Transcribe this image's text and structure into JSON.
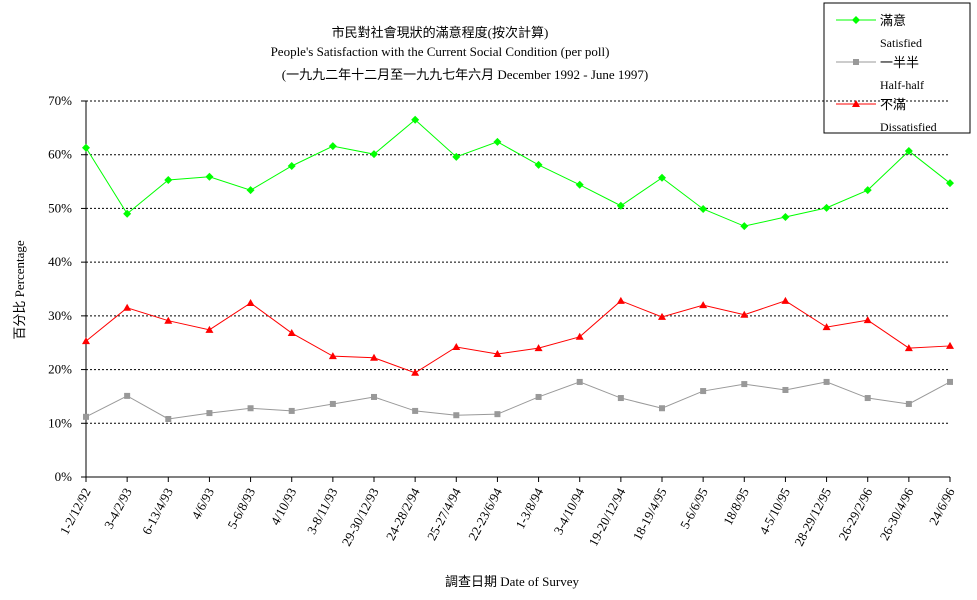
{
  "chart_data": {
    "type": "line",
    "title": "市民對社會現狀的滿意程度(按次計算)",
    "subtitle": "People's Satisfaction with the Current Social Condition (per poll)",
    "subtitle2": "(一九九二年十二月至一九九七年六月 December 1992 -  June 1997)",
    "y_label": "百分比 Percentage",
    "x_label": "調查日期 Date of Survey",
    "categories": [
      "1-2/12/92",
      "3-4/2/93",
      "6-13/4/93",
      "4/6/93",
      "5-6/8/93",
      "4/10/93",
      "3-8/11/93",
      "29-30/12/93",
      "24-28/2/94",
      "25-27/4/94",
      "22-23/6/94",
      "1-3/8/94",
      "3-4/10/94",
      "19-20/12/94",
      "18-19/4/95",
      "5-6/6/95",
      "18/8/95",
      "4-5/10/95",
      "28-29/12/95",
      "26-29/2/96",
      "26-30/4/96",
      "24/6/96"
    ],
    "series": [
      {
        "name": "滿意",
        "name_en": "Satisfied",
        "color": "#00ff00",
        "marker": "diamond",
        "values": [
          61.3,
          49,
          55.3,
          55.9,
          53.4,
          57.9,
          61.6,
          60.1,
          66.5,
          59.6,
          62.4,
          58.1,
          54.4,
          50.5,
          55.7,
          49.9,
          46.7,
          48.4,
          50.1,
          53.4,
          60.7,
          54.7
        ]
      },
      {
        "name": "一半半",
        "name_en": "Half-half",
        "color": "#999999",
        "marker": "square",
        "values": [
          11.2,
          15.1,
          10.8,
          11.9,
          12.8,
          12.3,
          13.6,
          14.9,
          12.3,
          11.5,
          11.7,
          14.9,
          17.7,
          14.7,
          12.8,
          16.0,
          17.3,
          16.2,
          17.7,
          14.7,
          13.6,
          17.7
        ]
      },
      {
        "name": "不滿",
        "name_en": "Dissatisfied",
        "color": "#ff0000",
        "marker": "triangle",
        "values": [
          25.3,
          31.5,
          29.1,
          27.4,
          32.4,
          26.8,
          22.5,
          22.2,
          19.4,
          24.2,
          22.9,
          24.0,
          26.1,
          32.8,
          29.8,
          32.0,
          30.2,
          32.8,
          27.9,
          29.2,
          24.0,
          24.4
        ]
      }
    ],
    "ylim": [
      0,
      70
    ],
    "yticks": [
      {
        "value": 0,
        "label": "0%"
      },
      {
        "value": 10,
        "label": "10%"
      },
      {
        "value": 20,
        "label": "20%"
      },
      {
        "value": 30,
        "label": "30%"
      },
      {
        "value": 40,
        "label": "40%"
      },
      {
        "value": 50,
        "label": "50%"
      },
      {
        "value": 60,
        "label": "60%"
      },
      {
        "value": 70,
        "label": "70%"
      }
    ],
    "grid": true,
    "legend": "top-right"
  }
}
